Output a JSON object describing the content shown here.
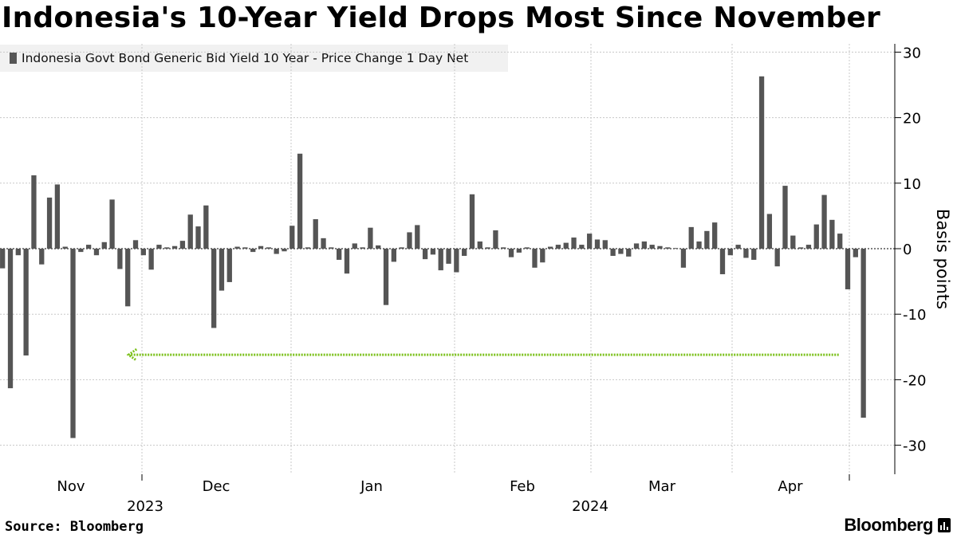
{
  "header": {
    "title": "Indonesia's 10-Year Yield Drops Most Since November"
  },
  "legend": {
    "label": "Indonesia Govt Bond Generic Bid Yield 10 Year - Price Change 1 Day Net"
  },
  "footer": {
    "source": "Source: Bloomberg",
    "brand": "Bloomberg"
  },
  "colors": {
    "bar": "#555555",
    "grid": "#c8c8c8",
    "arrow": "#7cc11c",
    "legend_bg": "#f1f1f1"
  },
  "chart_data": {
    "type": "bar",
    "title": "Indonesia's 10-Year Yield Drops Most Since November",
    "ylabel": "Basis points",
    "xlabel": "",
    "ylim": [
      -34,
      31
    ],
    "yticks": [
      30,
      20,
      10,
      0,
      -10,
      -20,
      -30
    ],
    "months": [
      "Nov",
      "Dec",
      "Jan",
      "Feb",
      "Mar",
      "Apr"
    ],
    "years": [
      "2023",
      "2024"
    ],
    "series": [
      {
        "name": "Indonesia Govt Bond Generic Bid Yield 10 Year - Price Change 1 Day Net",
        "values": [
          -3,
          -21.3,
          -1,
          -16.3,
          11.2,
          -2.4,
          7.8,
          9.8,
          0.3,
          -28.9,
          -0.5,
          0.6,
          -1,
          1,
          7.5,
          -3.1,
          -8.8,
          1.3,
          -1,
          -3.2,
          0.6,
          0.2,
          0.4,
          1.2,
          5.2,
          3.4,
          6.6,
          -12.1,
          -6.4,
          -5.1,
          0.3,
          0.2,
          -0.5,
          0.4,
          0.2,
          -0.8,
          -0.4,
          3.5,
          14.5,
          0.2,
          4.5,
          1.6,
          0.2,
          -1.7,
          -3.8,
          0.8,
          0.2,
          3.2,
          0.5,
          -8.6,
          -2,
          0.2,
          2.5,
          3.6,
          -1.6,
          -0.9,
          -3.3,
          -2.3,
          -3.6,
          -1.1,
          8.3,
          1.1,
          0.2,
          2.8,
          0.2,
          -1.3,
          -0.6,
          0.2,
          -2.9,
          -2.1,
          0.3,
          0.6,
          0.9,
          1.7,
          0.6,
          2.3,
          1.4,
          1.3,
          -1.1,
          -0.8,
          -1.2,
          0.8,
          1.1,
          0.6,
          0.4,
          0.2,
          0.1,
          -2.9,
          3.3,
          1.1,
          2.7,
          4,
          -3.9,
          -1,
          0.6,
          -1.4,
          -1.7,
          26.3,
          5.3,
          -2.7,
          9.6,
          2,
          0.2,
          0.6,
          3.7,
          8.2,
          4.4,
          2.3,
          -6.2,
          -1.3,
          -25.8
        ]
      }
    ],
    "annotations": [
      {
        "type": "arrow",
        "value": -16.2,
        "from_index": 107,
        "to_index": 16
      }
    ]
  }
}
